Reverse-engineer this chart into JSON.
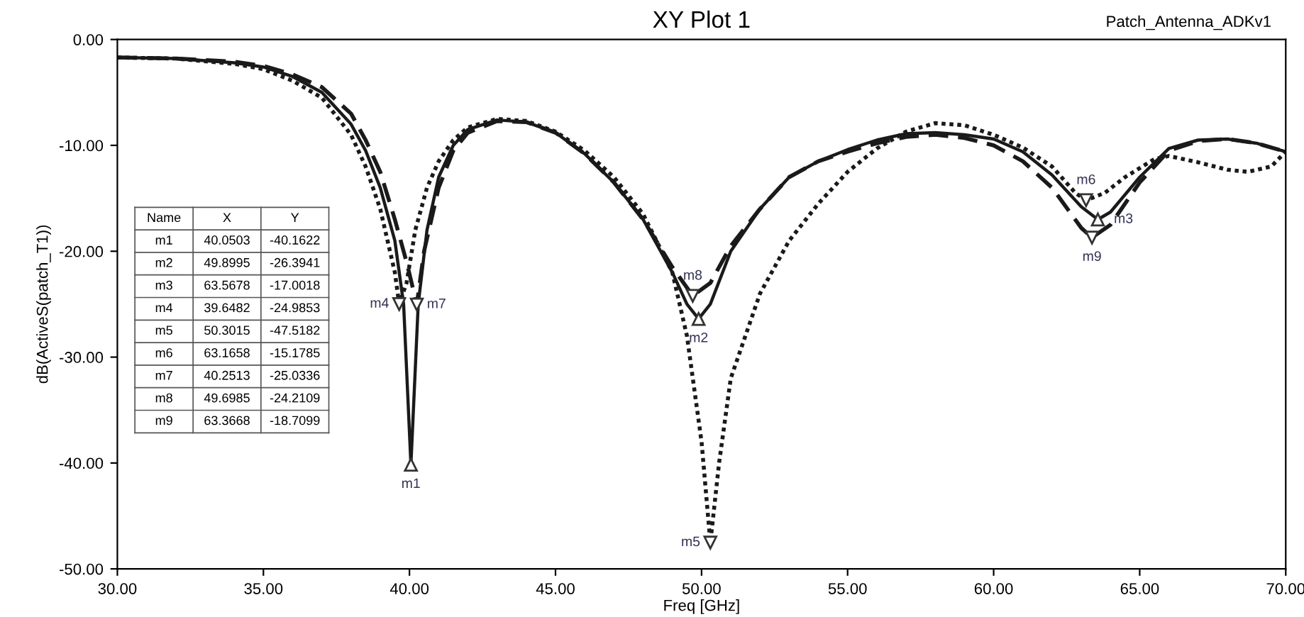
{
  "chart_data": {
    "type": "line",
    "title": "XY Plot 1",
    "subtitle": "Patch_Antenna_ADKv1",
    "xlabel": "Freq [GHz]",
    "ylabel": "dB(ActiveS(patch_T1))",
    "xlim": [
      30,
      70
    ],
    "ylim": [
      -50,
      0
    ],
    "xticks": [
      {
        "value": 30,
        "label": "30.00"
      },
      {
        "value": 35,
        "label": "35.00"
      },
      {
        "value": 40,
        "label": "40.00"
      },
      {
        "value": 45,
        "label": "45.00"
      },
      {
        "value": 50,
        "label": "50.00"
      },
      {
        "value": 55,
        "label": "55.00"
      },
      {
        "value": 60,
        "label": "60.00"
      },
      {
        "value": 65,
        "label": "65.00"
      },
      {
        "value": 70,
        "label": "70.00"
      }
    ],
    "yticks": [
      {
        "value": -50,
        "label": "-50.00"
      },
      {
        "value": -40,
        "label": "-40.00"
      },
      {
        "value": -30,
        "label": "-30.00"
      },
      {
        "value": -20,
        "label": "-20.00"
      },
      {
        "value": -10,
        "label": "-10.00"
      },
      {
        "value": 0,
        "label": "0.00"
      }
    ],
    "grid": false,
    "legend": false,
    "series": [
      {
        "color": "#1a1a1a",
        "line_style": "solid",
        "x": [
          30,
          32,
          34,
          35,
          36,
          37,
          38,
          38.5,
          39,
          39.5,
          39.8,
          40.0503,
          40.3,
          40.6,
          41,
          41.5,
          42,
          43,
          44,
          45,
          46,
          47,
          48,
          49,
          49.5,
          49.8995,
          50.3,
          51,
          52,
          53,
          54,
          55,
          56,
          57,
          58,
          59,
          60,
          61,
          62,
          63,
          63.5678,
          64,
          65,
          66,
          67,
          68,
          69,
          70
        ],
        "values": [
          -1.7,
          -1.8,
          -2.2,
          -2.6,
          -3.5,
          -5,
          -8,
          -10.5,
          -14,
          -19,
          -25,
          -40.1622,
          -25,
          -18,
          -13,
          -10,
          -8.5,
          -7.6,
          -7.8,
          -8.8,
          -10.8,
          -13.5,
          -17,
          -22,
          -25,
          -26.3941,
          -25,
          -20,
          -16,
          -13,
          -11.5,
          -10.4,
          -9.5,
          -8.9,
          -8.8,
          -9,
          -9.4,
          -10.6,
          -12.8,
          -15.8,
          -17.0018,
          -16.3,
          -13,
          -10.3,
          -9.5,
          -9.4,
          -9.8,
          -10.6
        ]
      },
      {
        "color": "#1a1a1a",
        "line_style": "dotted",
        "x": [
          30,
          32,
          34,
          35,
          36,
          37,
          38,
          38.5,
          39,
          39.5,
          39.6482,
          39.9,
          40.2,
          40.6,
          41,
          41.5,
          42,
          43,
          44,
          45,
          46,
          47,
          48,
          49,
          49.5,
          50,
          50.3015,
          50.6,
          51,
          52,
          53,
          54,
          55,
          56,
          57,
          58,
          59,
          60,
          61,
          62,
          62.8,
          63.1658,
          63.8,
          64.5,
          65.5,
          66,
          67,
          68,
          68.7,
          69.5,
          70
        ],
        "values": [
          -1.7,
          -1.8,
          -2.3,
          -2.8,
          -3.9,
          -5.5,
          -9,
          -12,
          -16,
          -22,
          -24.9853,
          -23,
          -18,
          -14,
          -11.5,
          -9.5,
          -8.3,
          -7.5,
          -7.7,
          -8.7,
          -10.5,
          -13,
          -16.5,
          -22,
          -28,
          -38,
          -47.5182,
          -40,
          -32,
          -24,
          -19,
          -15.5,
          -12.5,
          -10.3,
          -8.7,
          -7.9,
          -8.1,
          -9,
          -10.2,
          -12,
          -14.5,
          -15.1785,
          -14.5,
          -13,
          -11.3,
          -11,
          -11.6,
          -12.3,
          -12.5,
          -12,
          -10.6
        ]
      },
      {
        "color": "#1a1a1a",
        "line_style": "dashed",
        "x": [
          30,
          32,
          34,
          35,
          36,
          37,
          38,
          38.5,
          39,
          39.5,
          39.9,
          40.2513,
          40.5,
          41,
          41.5,
          42,
          43,
          44,
          45,
          46,
          47,
          48,
          49,
          49.6985,
          50.3,
          51,
          52,
          53,
          54,
          55,
          56,
          57,
          58,
          59,
          60,
          61,
          62,
          63,
          63.3668,
          64,
          65,
          66,
          67,
          68,
          69,
          70
        ],
        "values": [
          -1.7,
          -1.8,
          -2.1,
          -2.5,
          -3.3,
          -4.5,
          -7,
          -9.5,
          -12.5,
          -17,
          -21,
          -25.0336,
          -20,
          -14,
          -10.5,
          -8.8,
          -7.7,
          -7.8,
          -8.8,
          -10.8,
          -13.5,
          -17,
          -21.5,
          -24.2109,
          -23,
          -19.5,
          -16,
          -13,
          -11.5,
          -10.6,
          -9.8,
          -9.2,
          -9,
          -9.3,
          -10,
          -11.5,
          -14,
          -17.8,
          -18.7099,
          -17.5,
          -13.5,
          -10.5,
          -9.6,
          -9.4,
          -9.8,
          -10.6
        ]
      }
    ],
    "annotations": [
      "Name",
      "X",
      "Y",
      "m1",
      "40.0503",
      "-40.1622",
      "m2",
      "49.8995",
      "-26.3941",
      "m3",
      "63.5678",
      "-17.0018",
      "m4",
      "39.6482",
      "-24.9853",
      "m5",
      "50.3015",
      "-47.5182",
      "m6",
      "63.1658",
      "-15.1785",
      "m7",
      "40.2513",
      "-25.0336",
      "m8",
      "49.6985",
      "-24.2109",
      "m9",
      "63.3668",
      "-18.7099",
      {
        "text": "m1",
        "x": 40.0503,
        "y": -40.1622
      },
      {
        "text": "m2",
        "x": 49.8995,
        "y": -26.3941
      },
      {
        "text": "m3",
        "x": 63.5678,
        "y": -17.0018
      },
      {
        "text": "m4",
        "x": 39.6482,
        "y": -24.9853
      },
      {
        "text": "m5",
        "x": 50.3015,
        "y": -47.5182
      },
      {
        "text": "m6",
        "x": 63.1658,
        "y": -15.1785
      },
      {
        "text": "m7",
        "x": 40.2513,
        "y": -25.0336
      },
      {
        "text": "m8",
        "x": 49.6985,
        "y": -24.2109
      },
      {
        "text": "m9",
        "x": 63.3668,
        "y": -18.7099
      }
    ]
  }
}
